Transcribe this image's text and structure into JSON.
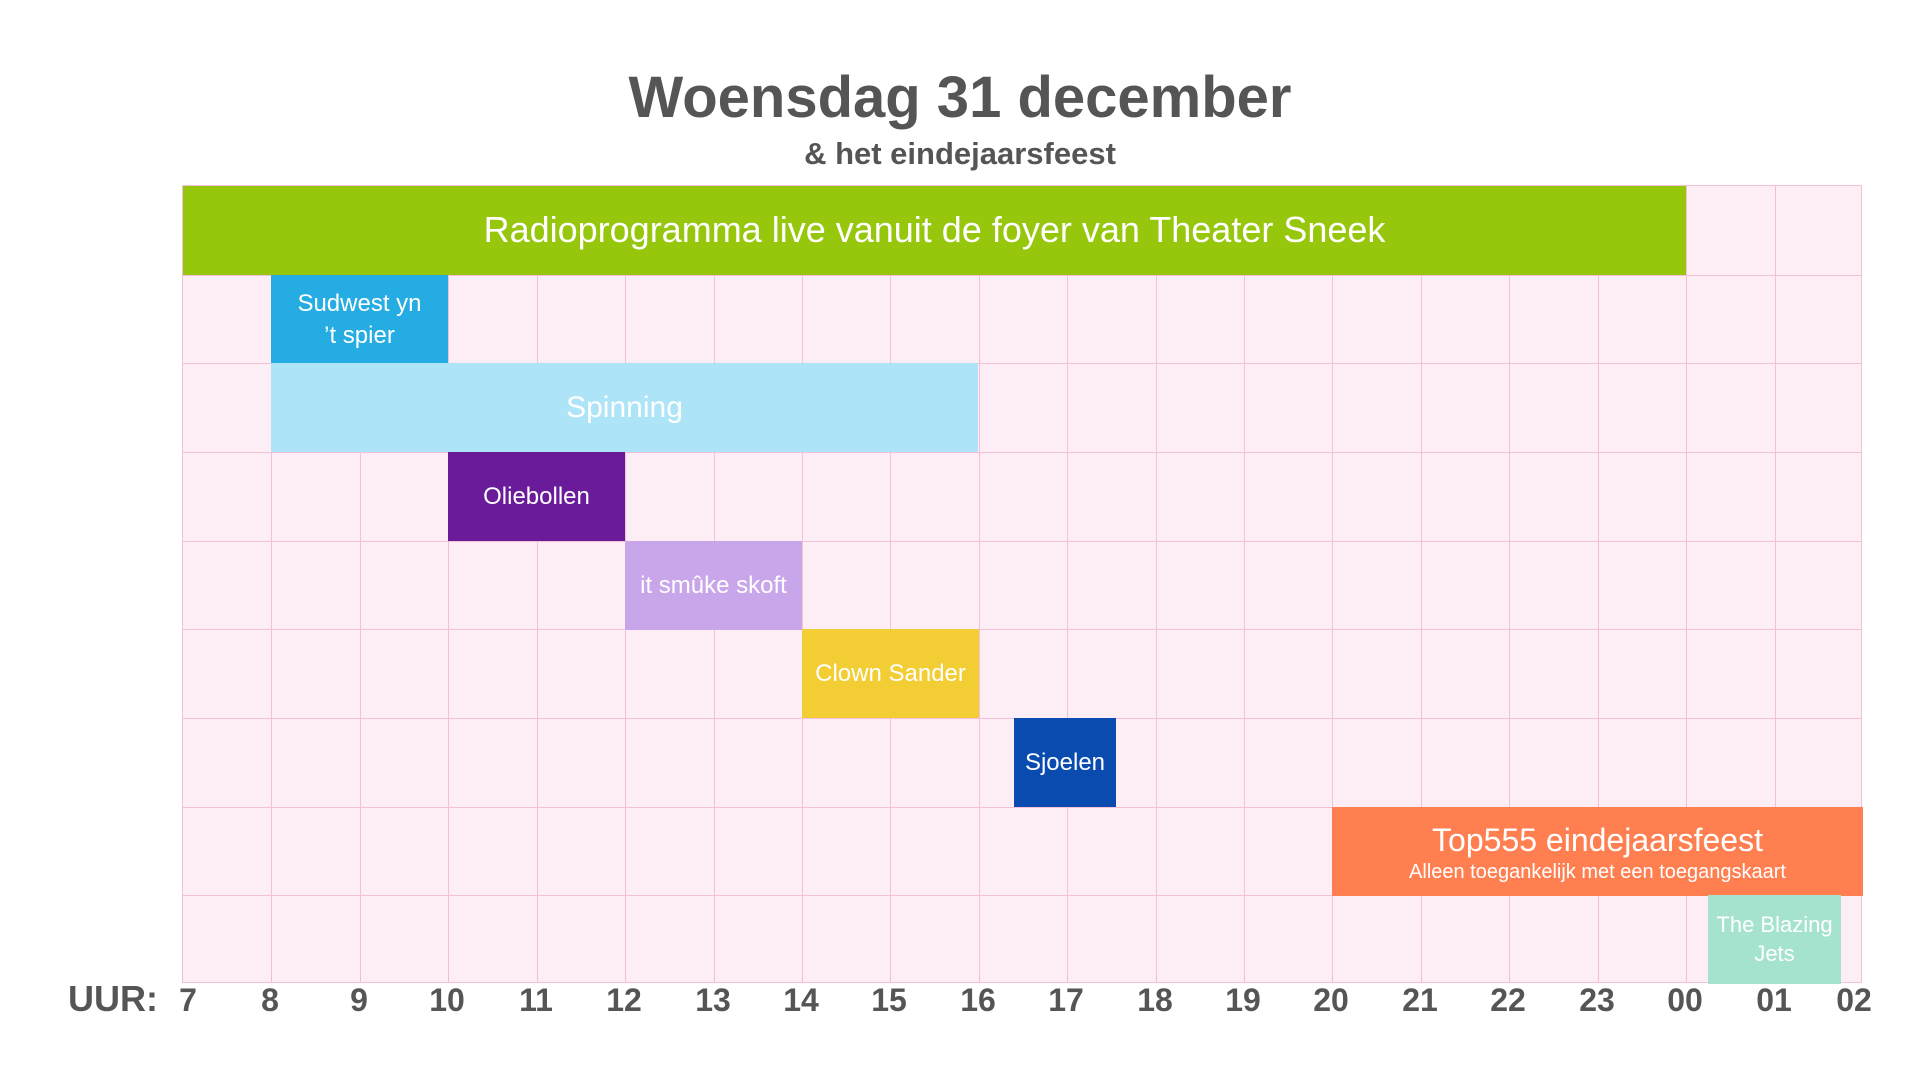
{
  "header": {
    "title": "Woensdag 31 december",
    "subtitle": "& het eindejaarsfeest"
  },
  "axis": {
    "label": "UUR:",
    "ticks": [
      "7",
      "8",
      "9",
      "10",
      "11",
      "12",
      "13",
      "14",
      "15",
      "16",
      "17",
      "18",
      "19",
      "20",
      "21",
      "22",
      "23",
      "00",
      "01",
      "02"
    ]
  },
  "schedule": {
    "hour_start": 7,
    "hour_end": 26,
    "row_count": 9,
    "events": [
      {
        "name": "radioprogramma",
        "label": "Radioprogramma live vanuit de foyer van Theater Sneek",
        "row": 0,
        "start": 7,
        "end": 24,
        "color": "#97c70c",
        "text_color": "#ffffff",
        "font_size": 36
      },
      {
        "name": "sudwest-yn-t-spier",
        "label": "Sudwest yn\n’t spier",
        "row": 1,
        "start": 8,
        "end": 10,
        "color": "#25ace2",
        "text_color": "#ffffff",
        "font_size": 24
      },
      {
        "name": "spinning",
        "label": "Spinning",
        "row": 2,
        "start": 8,
        "end": 16,
        "color": "#aee4f7",
        "text_color": "#ffffff",
        "font_size": 30
      },
      {
        "name": "oliebollen",
        "label": "Oliebollen",
        "row": 3,
        "start": 10,
        "end": 12,
        "color": "#6a1b9a",
        "text_color": "#ffffff",
        "font_size": 24
      },
      {
        "name": "it-smuke-skoft",
        "label": "it smûke skoft",
        "row": 4,
        "start": 12,
        "end": 14,
        "color": "#c9a6ea",
        "text_color": "#ffffff",
        "font_size": 24
      },
      {
        "name": "clown-sander",
        "label": "Clown Sander",
        "row": 5,
        "start": 14,
        "end": 16,
        "color": "#f2cd34",
        "text_color": "#ffffff",
        "font_size": 24
      },
      {
        "name": "sjoelen",
        "label": "Sjoelen",
        "row": 6,
        "start": 16.4,
        "end": 17.55,
        "color": "#0a4bb0",
        "text_color": "#ffffff",
        "font_size": 24
      },
      {
        "name": "top555-eindejaarsfeest",
        "label": "Top555 eindejaarsfeest",
        "sublabel": "Alleen toegankelijk met een toegangskaart",
        "row": 7,
        "start": 20,
        "end": 26,
        "color": "#ff7f50",
        "text_color": "#ffffff",
        "font_size": 32
      },
      {
        "name": "the-blazing-jets",
        "label": "The Blazing\nJets",
        "row": 8,
        "start": 24.25,
        "end": 25.75,
        "color": "#a5e3cf",
        "text_color": "#ffffff",
        "font_size": 22
      }
    ]
  }
}
